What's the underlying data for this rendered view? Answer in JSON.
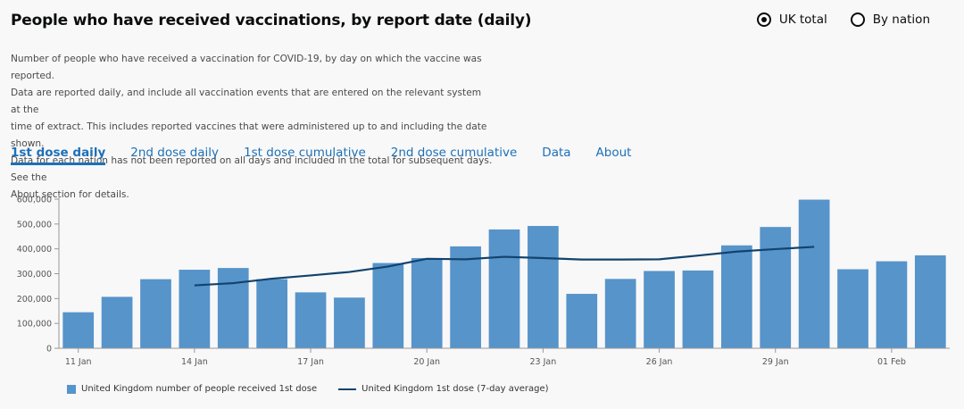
{
  "header": {
    "title": "People who have received vaccinations, by report date (daily)"
  },
  "view_toggle": {
    "options": [
      {
        "label": "UK total",
        "checked": true
      },
      {
        "label": "By nation",
        "checked": false
      }
    ]
  },
  "description": {
    "lines": [
      "Number of people who have received a vaccination for COVID-19, by day on which the vaccine was reported.",
      "Data are reported daily, and include all vaccination events that are entered on the relevant system at the",
      "time of extract. This includes reported vaccines that were administered up to and including the date shown.",
      "Data for each nation has not been reported on all days and included in the total for subsequent days. See the",
      "About section for details."
    ]
  },
  "tabs": [
    {
      "label": "1st dose daily",
      "active": true
    },
    {
      "label": "2nd dose daily",
      "active": false
    },
    {
      "label": "1st dose cumulative",
      "active": false
    },
    {
      "label": "2nd dose cumulative",
      "active": false
    },
    {
      "label": "Data",
      "active": false
    },
    {
      "label": "About",
      "active": false
    }
  ],
  "legend": {
    "bar_label": "United Kingdom number of people received 1st dose",
    "line_label": "United Kingdom 1st dose (7-day average)"
  },
  "chart_data": {
    "type": "bar",
    "title": "",
    "xlabel": "",
    "ylabel": "",
    "ylim": [
      0,
      600000
    ],
    "yticks": [
      0,
      100000,
      200000,
      300000,
      400000,
      500000,
      600000
    ],
    "ytick_labels": [
      "0",
      "100,000",
      "200,000",
      "300,000",
      "400,000",
      "500,000",
      "600,000"
    ],
    "categories": [
      "11 Jan",
      "12 Jan",
      "13 Jan",
      "14 Jan",
      "15 Jan",
      "16 Jan",
      "17 Jan",
      "18 Jan",
      "19 Jan",
      "20 Jan",
      "21 Jan",
      "22 Jan",
      "23 Jan",
      "24 Jan",
      "25 Jan",
      "26 Jan",
      "27 Jan",
      "28 Jan",
      "29 Jan",
      "30 Jan",
      "31 Jan",
      "01 Feb",
      "02 Feb"
    ],
    "xtick_indices": [
      0,
      3,
      6,
      9,
      12,
      15,
      18,
      21
    ],
    "xtick_labels": [
      "11 Jan",
      "14 Jan",
      "17 Jan",
      "20 Jan",
      "23 Jan",
      "26 Jan",
      "29 Jan",
      "01 Feb"
    ],
    "series": [
      {
        "name": "United Kingdom number of people received 1st dose",
        "type": "bar",
        "color": "#5694ca",
        "values": [
          145000,
          207000,
          278000,
          316000,
          323000,
          278000,
          225000,
          204000,
          343000,
          363000,
          410000,
          478000,
          492000,
          219000,
          279000,
          311000,
          313000,
          414000,
          488000,
          598000,
          318000,
          350000,
          374000
        ]
      },
      {
        "name": "United Kingdom 1st dose (7-day average)",
        "type": "line",
        "color": "#12436d",
        "values": [
          null,
          null,
          null,
          253000,
          262000,
          280000,
          293000,
          307000,
          329000,
          360000,
          358000,
          368000,
          363000,
          357000,
          357000,
          358000,
          373000,
          389000,
          399000,
          408000,
          null,
          null,
          null
        ]
      }
    ]
  }
}
